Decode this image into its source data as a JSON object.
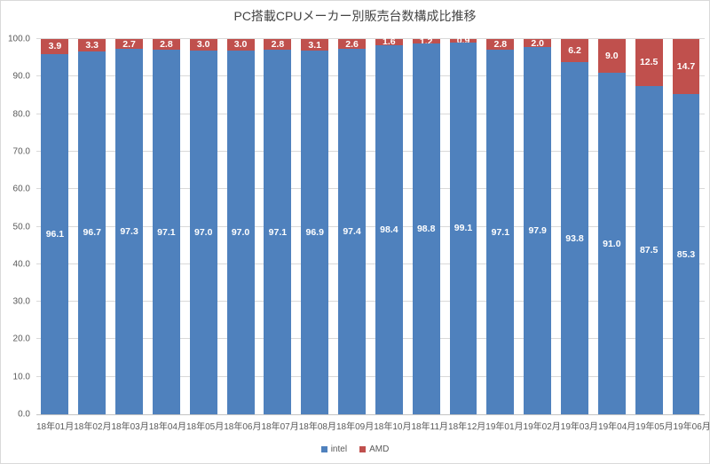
{
  "chart_data": {
    "type": "bar",
    "subtype": "stacked-column-100",
    "title": "PC搭載CPUメーカー別販売台数構成比推移",
    "categories": [
      "18年01月",
      "18年02月",
      "18年03月",
      "18年04月",
      "18年05月",
      "18年06月",
      "18年07月",
      "18年08月",
      "18年09月",
      "18年10月",
      "18年11月",
      "18年12月",
      "19年01月",
      "19年02月",
      "19年03月",
      "19年04月",
      "19年05月",
      "19年06月"
    ],
    "series": [
      {
        "name": "intel",
        "color": "#4f81bd",
        "values": [
          96.1,
          96.7,
          97.3,
          97.1,
          97.0,
          97.0,
          97.1,
          96.9,
          97.4,
          98.4,
          98.8,
          99.1,
          97.1,
          97.9,
          93.8,
          91.0,
          87.5,
          85.3
        ]
      },
      {
        "name": "AMD",
        "color": "#c0504d",
        "values": [
          3.9,
          3.3,
          2.7,
          2.8,
          3.0,
          3.0,
          2.8,
          3.1,
          2.6,
          1.6,
          1.2,
          0.9,
          2.8,
          2.0,
          6.2,
          9.0,
          12.5,
          14.7
        ]
      }
    ],
    "xlabel": "",
    "ylabel": "",
    "ylim": [
      0,
      100
    ],
    "ytick_step": 10,
    "ytick_labels": [
      "0.0",
      "10.0",
      "20.0",
      "30.0",
      "40.0",
      "50.0",
      "60.0",
      "70.0",
      "80.0",
      "90.0",
      "100.0"
    ],
    "grid": true,
    "gridline_color": "#d9d9d9",
    "value_labels": "inside-center-white-bold",
    "legend_position": "bottom",
    "axis_text_color": "#595959",
    "title_color": "#444444",
    "background_color": "#ffffff"
  }
}
